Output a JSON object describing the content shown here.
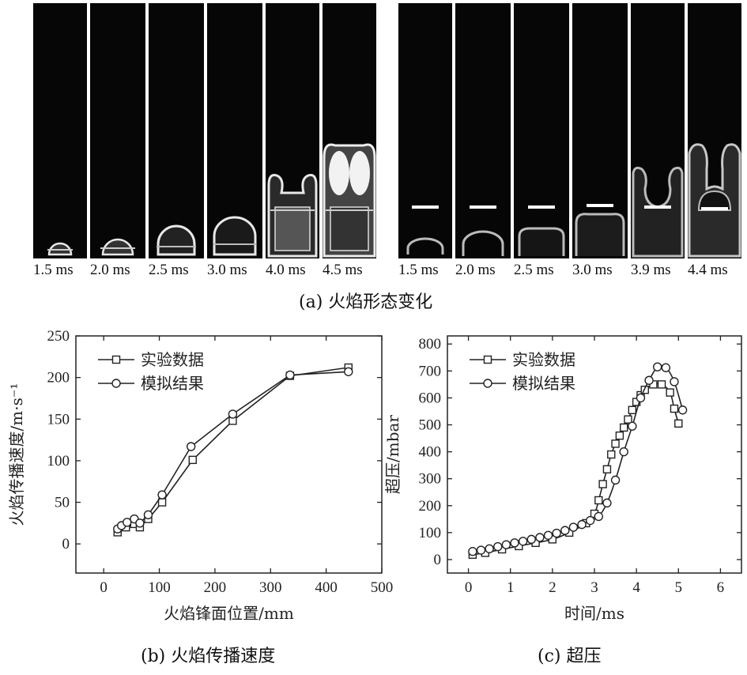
{
  "panel_a": {
    "left_labels": [
      "1.5 ms",
      "2.0 ms",
      "2.5 ms",
      "3.0 ms",
      "4.0 ms",
      "4.5 ms"
    ],
    "right_labels": [
      "1.5 ms",
      "2.0 ms",
      "2.5 ms",
      "3.0 ms",
      "3.9 ms",
      "4.4 ms"
    ],
    "caption": "(a) 火焰形态变化"
  },
  "caption_b": "(b) 火焰传播速度",
  "caption_c": "(c) 超压",
  "colors": {
    "line": "#222222",
    "frame_bg": "#060606",
    "flame": "#e8e8e8"
  },
  "chart_data": [
    {
      "type": "line",
      "xlabel": "火焰锋面位置/mm",
      "ylabel": "火焰传播速度/m·s⁻¹",
      "xlim": [
        -50,
        500
      ],
      "ylim": [
        -35,
        250
      ],
      "xticks": [
        0,
        100,
        200,
        300,
        400,
        500
      ],
      "yticks": [
        0,
        50,
        100,
        150,
        200,
        250
      ],
      "legend_position": "top-left",
      "series": [
        {
          "name": "实验数据",
          "marker": "square",
          "x": [
            25,
            40,
            55,
            65,
            80,
            105,
            160,
            232,
            335,
            440
          ],
          "y": [
            14,
            20,
            24,
            20,
            30,
            50,
            101,
            148,
            202,
            212
          ]
        },
        {
          "name": "模拟结果",
          "marker": "circle",
          "x": [
            25,
            32,
            42,
            55,
            65,
            80,
            105,
            157,
            232,
            335,
            440
          ],
          "y": [
            18,
            22,
            26,
            30,
            25,
            35,
            59,
            117,
            156,
            203,
            207
          ]
        }
      ]
    },
    {
      "type": "line",
      "xlabel": "时间/ms",
      "ylabel": "超压/mbar",
      "xlim": [
        -0.5,
        6.5
      ],
      "ylim": [
        -50,
        830
      ],
      "xticks": [
        0,
        1,
        2,
        3,
        4,
        5,
        6
      ],
      "yticks": [
        0,
        100,
        200,
        300,
        400,
        500,
        600,
        700,
        800
      ],
      "legend_position": "top-left",
      "series": [
        {
          "name": "实验数据",
          "marker": "square",
          "x": [
            0.1,
            0.4,
            0.8,
            1.2,
            1.6,
            2.0,
            2.4,
            2.8,
            3.0,
            3.1,
            3.2,
            3.3,
            3.4,
            3.5,
            3.6,
            3.7,
            3.8,
            3.9,
            4.0,
            4.1,
            4.2,
            4.4,
            4.6,
            4.8,
            4.9,
            5.0
          ],
          "y": [
            18,
            25,
            38,
            50,
            62,
            75,
            100,
            135,
            170,
            220,
            280,
            335,
            390,
            430,
            460,
            490,
            520,
            555,
            585,
            610,
            630,
            650,
            650,
            620,
            560,
            505
          ]
        },
        {
          "name": "模拟结果",
          "marker": "circle",
          "x": [
            0.1,
            0.3,
            0.5,
            0.7,
            0.9,
            1.1,
            1.3,
            1.5,
            1.7,
            1.9,
            2.1,
            2.3,
            2.5,
            2.7,
            2.9,
            3.1,
            3.3,
            3.5,
            3.7,
            3.9,
            4.1,
            4.3,
            4.5,
            4.7,
            4.9,
            5.1
          ],
          "y": [
            30,
            35,
            40,
            48,
            55,
            62,
            68,
            75,
            82,
            90,
            98,
            108,
            120,
            130,
            145,
            160,
            210,
            295,
            400,
            495,
            600,
            665,
            715,
            712,
            660,
            555
          ]
        }
      ]
    }
  ]
}
